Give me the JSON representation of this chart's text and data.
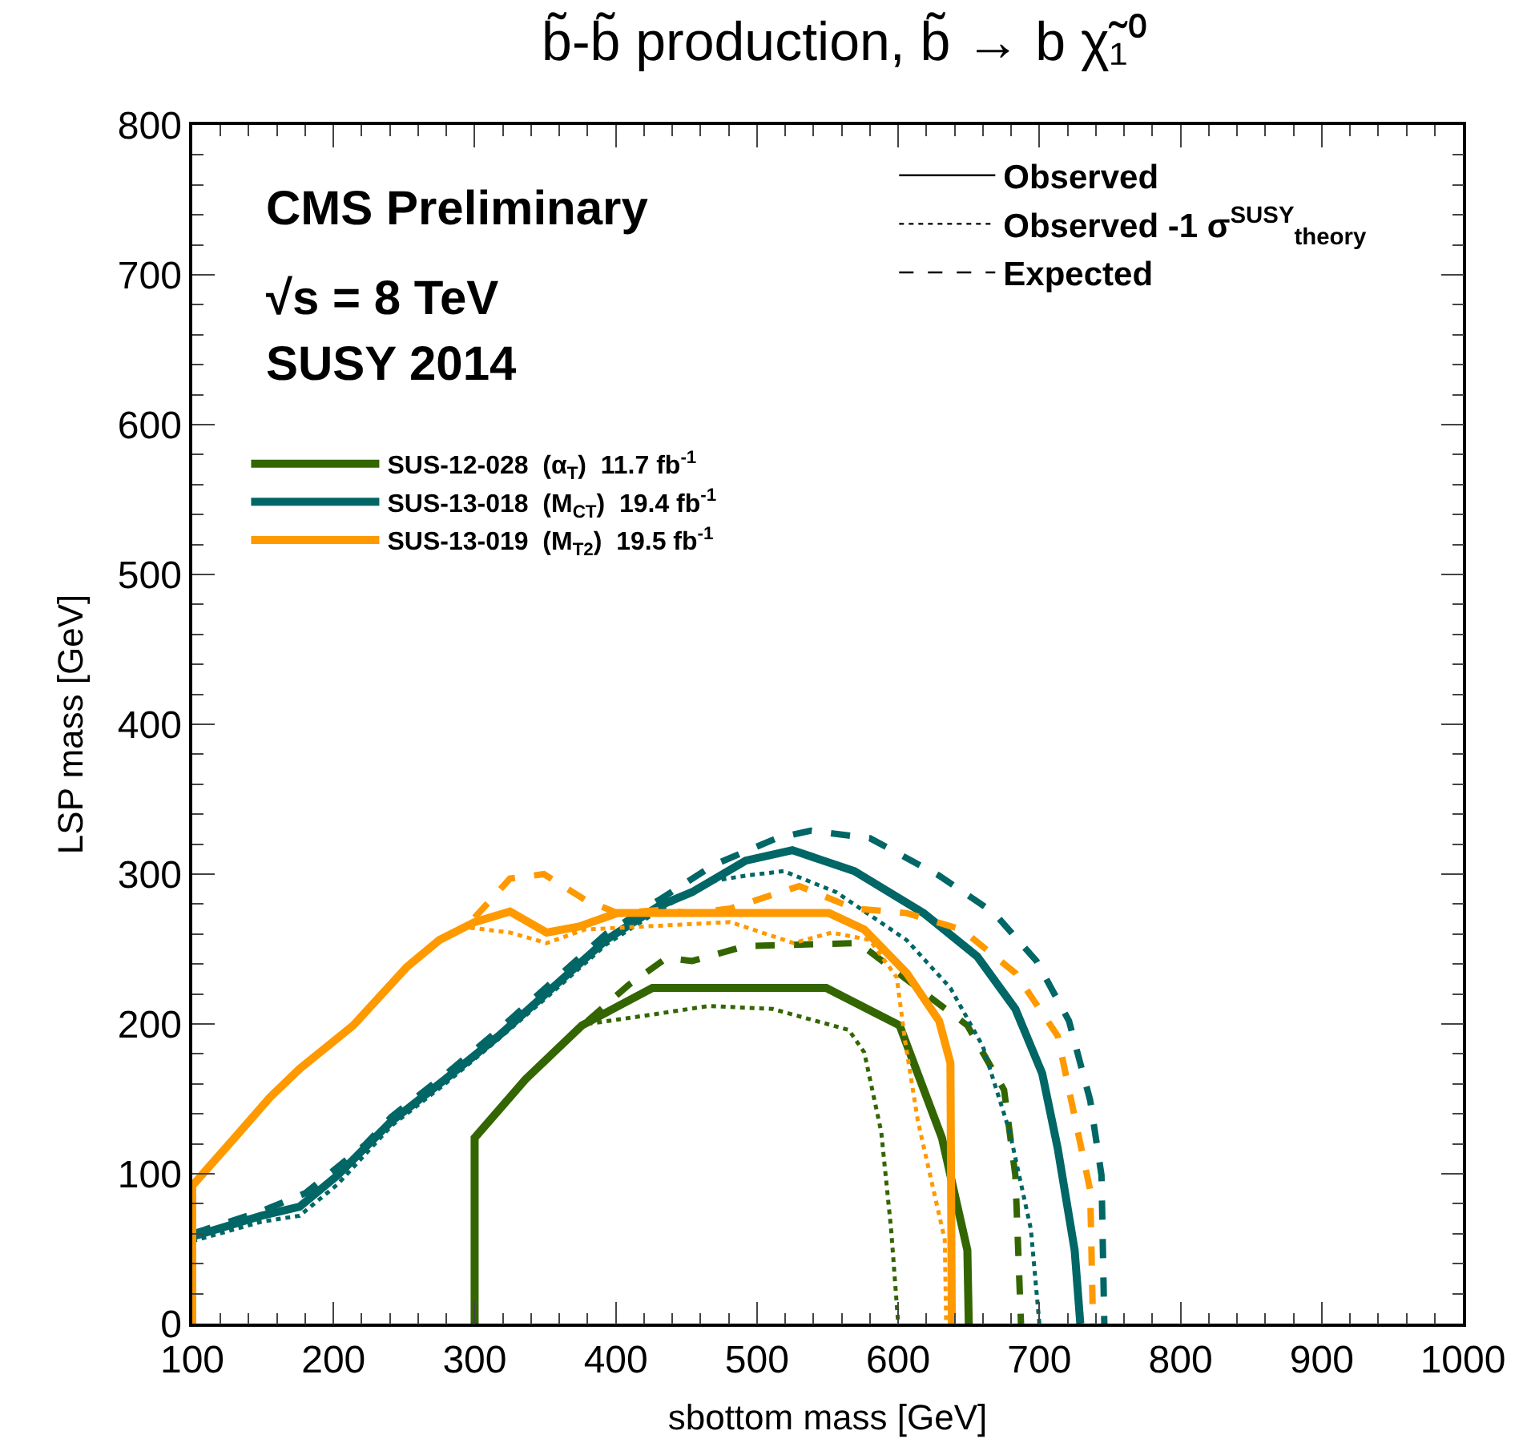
{
  "chart_data": {
    "type": "line",
    "title": "b̃-b̃ production, b̃ → b χ̃₁⁰",
    "xlabel": "sbottom mass [GeV]",
    "ylabel": "LSP mass [GeV]",
    "xlim": [
      100,
      1000
    ],
    "ylim": [
      0,
      800
    ],
    "xticks": [
      100,
      200,
      300,
      400,
      500,
      600,
      700,
      800,
      900,
      1000
    ],
    "yticks": [
      0,
      100,
      200,
      300,
      400,
      500,
      600,
      700,
      800
    ],
    "legend": "top left",
    "annotations": [
      "CMS Preliminary",
      "√s = 8 TeV",
      "SUSY 2014",
      "Observed",
      "Observed -1 σ$^{SUSY}$$_{theory}$",
      "Expected"
    ],
    "series": [
      {
        "name": "SUS-12-028  (α$_{T}$)  11.7 fb$^{-1}$",
        "color": "#336600",
        "line_style": "solid",
        "x": [
          300,
          300,
          336,
          376,
          426,
          549,
          601,
          631,
          649,
          650
        ],
        "values": [
          0,
          124,
          163,
          199,
          224,
          224,
          199,
          124,
          49,
          0
        ]
      },
      {
        "color": "#336600",
        "line_style": "dotted",
        "x": [
          380,
          424,
          466,
          511,
          565,
          576,
          588,
          595,
          600
        ],
        "values": [
          200,
          206,
          212,
          210,
          196,
          181,
          128,
          63,
          0
        ]
      },
      {
        "color": "#336600",
        "line_style": "dashed",
        "x": [
          380,
          409,
          436,
          454,
          492,
          572,
          614,
          649,
          675,
          683,
          687
        ],
        "values": [
          202,
          226,
          244,
          242,
          252,
          254,
          224,
          199,
          156,
          99,
          0
        ]
      },
      {
        "name": "SUS-13-018  (M$_{CT}$)  19.4 fb$^{-1}$",
        "color": "#006666",
        "line_style": "solid",
        "x": [
          100,
          149,
          176,
          203,
          241,
          279,
          317,
          355,
          393,
          431,
          454,
          492,
          525,
          569,
          618,
          656,
          683,
          702,
          713,
          725,
          729
        ],
        "values": [
          58,
          72,
          78,
          99,
          135,
          163,
          192,
          224,
          256,
          279,
          288,
          309,
          316,
          302,
          274,
          245,
          210,
          167,
          117,
          49,
          0
        ]
      },
      {
        "color": "#006666",
        "line_style": "dotted",
        "x": [
          100,
          149,
          176,
          203,
          241,
          279,
          317,
          355,
          393,
          431,
          466,
          492,
          519,
          556,
          606,
          637,
          660,
          679,
          694,
          700
        ],
        "values": [
          55,
          68,
          72,
          93,
          132,
          160,
          190,
          221,
          253,
          276,
          295,
          299,
          302,
          288,
          256,
          224,
          185,
          128,
          63,
          0
        ]
      },
      {
        "color": "#006666",
        "line_style": "dashed",
        "x": [
          100,
          149,
          180,
          222,
          241,
          279,
          317,
          355,
          393,
          431,
          469,
          514,
          538,
          580,
          629,
          668,
          698,
          721,
          736,
          744,
          746
        ],
        "values": [
          60,
          75,
          87,
          119,
          138,
          166,
          196,
          228,
          260,
          283,
          306,
          324,
          329,
          324,
          299,
          274,
          242,
          202,
          149,
          99,
          0
        ]
      },
      {
        "name": "SUS-13-019  (M$_{T2}$)  19.5 fb$^{-1}$",
        "color": "#ff9900",
        "line_style": "solid",
        "x": [
          100,
          100,
          130,
          155,
          176,
          214,
          252,
          275,
          300,
          325,
          351,
          374,
          401,
          466,
          551,
          576,
          606,
          629,
          637,
          638
        ],
        "values": [
          0,
          92,
          124,
          151,
          170,
          199,
          238,
          256,
          268,
          275,
          261,
          265,
          274,
          274,
          274,
          263,
          234,
          202,
          174,
          0
        ]
      },
      {
        "color": "#ff9900",
        "line_style": "dotted",
        "x": [
          290,
          325,
          351,
          378,
          481,
          526,
          553,
          580,
          599,
          605,
          614,
          633,
          634
        ],
        "values": [
          265,
          261,
          254,
          263,
          268,
          254,
          261,
          256,
          231,
          188,
          135,
          56,
          0
        ]
      },
      {
        "color": "#ff9900",
        "line_style": "dashed",
        "x": [
          300,
          325,
          349,
          378,
          401,
          431,
          454,
          481,
          530,
          569,
          606,
          645,
          683,
          713,
          721,
          736,
          738
        ],
        "values": [
          271,
          297,
          300,
          283,
          274,
          276,
          274,
          277,
          292,
          277,
          274,
          263,
          234,
          192,
          156,
          89,
          0
        ]
      }
    ]
  }
}
